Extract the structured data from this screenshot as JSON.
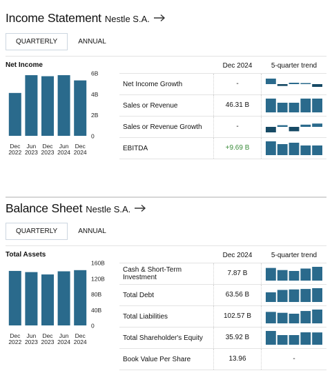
{
  "colors": {
    "bar": "#2a6a8c",
    "bar_dark": "#174a65",
    "positive": "#3a8c3a"
  },
  "income": {
    "title": "Income Statement",
    "company": "Nestle S.A.",
    "arrow_icon": "arrow-right-icon",
    "tabs": [
      "QUARTERLY",
      "ANNUAL"
    ],
    "chart_label": "Net Income",
    "col_period": "Dec 2024",
    "col_trend": "5-quarter trend",
    "rows": [
      {
        "label": "Net Income Growth",
        "value": "-",
        "trend": [
          0.12,
          -0.04,
          0.03,
          0.02,
          -0.06
        ]
      },
      {
        "label": "Sales or Revenue",
        "value": "46.31 B",
        "trend": [
          46,
          45,
          45,
          46,
          46
        ]
      },
      {
        "label": "Sales or Revenue Growth",
        "value": "-",
        "trend": [
          -0.1,
          0.03,
          -0.08,
          0.04,
          0.06
        ]
      },
      {
        "label": "EBITDA",
        "value": "+9.69 B",
        "trend": [
          10,
          9.8,
          9.9,
          9.7,
          9.7
        ]
      }
    ]
  },
  "balance": {
    "title": "Balance Sheet",
    "company": "Nestle S.A.",
    "arrow_icon": "arrow-right-icon",
    "tabs": [
      "QUARTERLY",
      "ANNUAL"
    ],
    "chart_label": "Total Assets",
    "col_period": "Dec 2024",
    "col_trend": "5-quarter trend",
    "rows": [
      {
        "label": "Cash & Short-Term Investment",
        "value": "7.87 B",
        "trend": [
          7.5,
          6.8,
          6.5,
          7.3,
          7.87
        ]
      },
      {
        "label": "Total Debt",
        "value": "63.56 B",
        "trend": [
          55,
          60,
          61,
          62,
          63.56
        ]
      },
      {
        "label": "Total Liabilities",
        "value": "102.57 B",
        "trend": [
          100,
          99,
          98,
          101,
          102.57
        ]
      },
      {
        "label": "Total Shareholder's Equity",
        "value": "35.92 B",
        "trend": [
          37,
          34,
          34,
          36,
          35.92
        ]
      },
      {
        "label": "Book Value Per Share",
        "value": "13.96",
        "trend_text": "-"
      }
    ]
  },
  "chart_data": [
    {
      "type": "bar",
      "categories": [
        "Dec\n2022",
        "Jun\n2023",
        "Dec\n2023",
        "Jun\n2024",
        "Dec\n2024"
      ],
      "values": [
        4.1,
        5.8,
        5.7,
        5.8,
        5.3
      ],
      "ylim": [
        0,
        6
      ],
      "yticks": [
        "6B",
        "4B",
        "2B",
        "0"
      ],
      "ylabel": "",
      "xlabel": "",
      "title": "Net Income"
    },
    {
      "type": "bar",
      "categories": [
        "Dec\n2022",
        "Jun\n2023",
        "Dec\n2023",
        "Jun\n2024",
        "Dec\n2024"
      ],
      "values": [
        139,
        136,
        130,
        138,
        141
      ],
      "ylim": [
        0,
        160
      ],
      "yticks": [
        "160B",
        "120B",
        "80B",
        "40B",
        "0"
      ],
      "ylabel": "",
      "xlabel": "",
      "title": "Total Assets"
    }
  ]
}
